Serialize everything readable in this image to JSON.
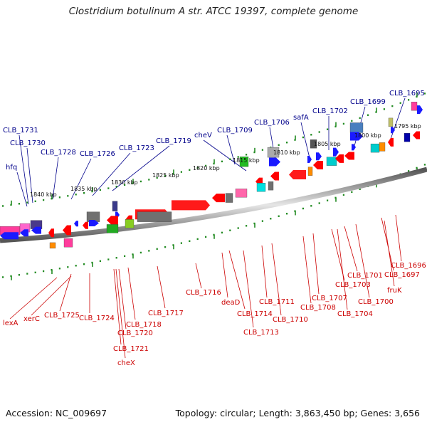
{
  "title": "Clostridium botulinum A str. ATCC 19397, complete genome",
  "footer": {
    "accession": "Accession: NC_009697",
    "summary": "Topology: circular; Length: 3,863,450 bp; Genes: 3,656"
  },
  "colors": {
    "top_labels": "#00008b",
    "bottom_labels": "#cc0000",
    "ticks": "#228b22"
  },
  "kbp_labels": [
    "1840 kbp",
    "1835 kbp",
    "1830 kbp",
    "1825 kbp",
    "1820 kbp",
    "1815 kbp",
    "1810 kbp",
    "1805 kbp",
    "1800 kbp",
    "1795 kbp"
  ],
  "top_gene_labels": [
    "CLB_1731",
    "CLB_1730",
    "hfq",
    "CLB_1728",
    "CLB_1726",
    "CLB_1723",
    "CLB_1719",
    "cheV",
    "CLB_1709",
    "CLB_1706",
    "safA",
    "CLB_1702",
    "CLB_1699",
    "CLB_1695"
  ],
  "bottom_gene_labels": [
    "lexA",
    "xerC",
    "CLB_1725",
    "CLB_1724",
    "CLB_1721",
    "cheX",
    "CLB_1720",
    "CLB_1718",
    "CLB_1717",
    "CLB_1716",
    "deaD",
    "CLB_1714",
    "CLB_1713",
    "CLB_1711",
    "CLB_1710",
    "CLB_1708",
    "CLB_1707",
    "CLB_1704",
    "CLB_1703",
    "CLB_1701",
    "CLB_1700",
    "fruK",
    "CLB_1697",
    "CLB_1696"
  ]
}
